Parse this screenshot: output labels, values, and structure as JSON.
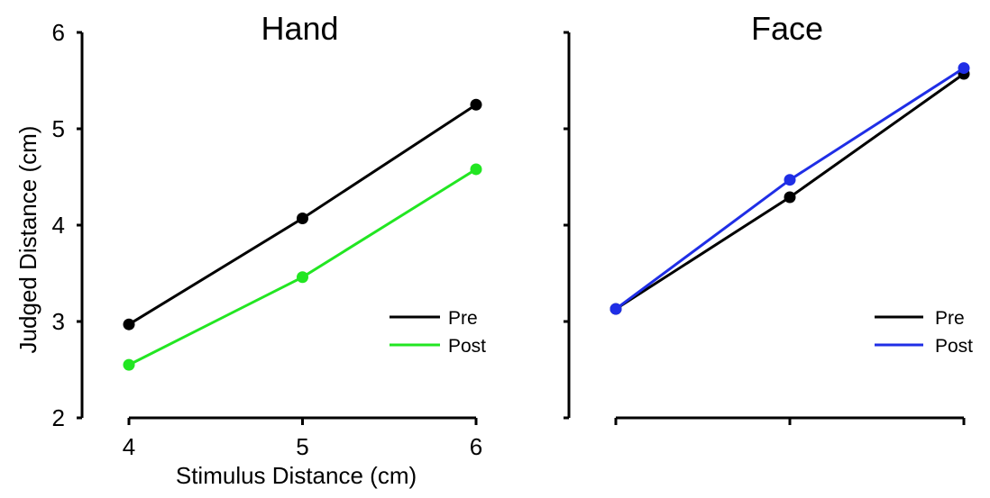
{
  "chart_data": [
    {
      "type": "line",
      "title": "Hand",
      "xlabel": "Stimulus Distance (cm)",
      "ylabel": "Judged Distance (cm)",
      "x": [
        4,
        5,
        6
      ],
      "xticks": [
        "4",
        "5",
        "6"
      ],
      "xlim": [
        4,
        6
      ],
      "ylim": [
        2,
        6
      ],
      "yticks": [
        "2",
        "3",
        "4",
        "5",
        "6"
      ],
      "grid": false,
      "legend_position": "bottom-right",
      "series": [
        {
          "name": "Pre",
          "color": "#000000",
          "values": [
            2.97,
            4.07,
            5.25
          ]
        },
        {
          "name": "Post",
          "color": "#22e622",
          "values": [
            2.55,
            3.46,
            4.58
          ]
        }
      ]
    },
    {
      "type": "line",
      "title": "Face",
      "xlabel": "",
      "ylabel": "",
      "x": [
        4,
        5,
        6
      ],
      "xticks": [
        "",
        "",
        ""
      ],
      "xlim": [
        4,
        6
      ],
      "ylim": [
        2,
        6
      ],
      "yticks": [
        "",
        "",
        "",
        "",
        ""
      ],
      "grid": false,
      "legend_position": "bottom-right",
      "series": [
        {
          "name": "Pre",
          "color": "#000000",
          "values": [
            3.13,
            4.29,
            5.57
          ]
        },
        {
          "name": "Post",
          "color": "#1f2ee6",
          "values": [
            3.13,
            4.47,
            5.63
          ]
        }
      ]
    }
  ]
}
